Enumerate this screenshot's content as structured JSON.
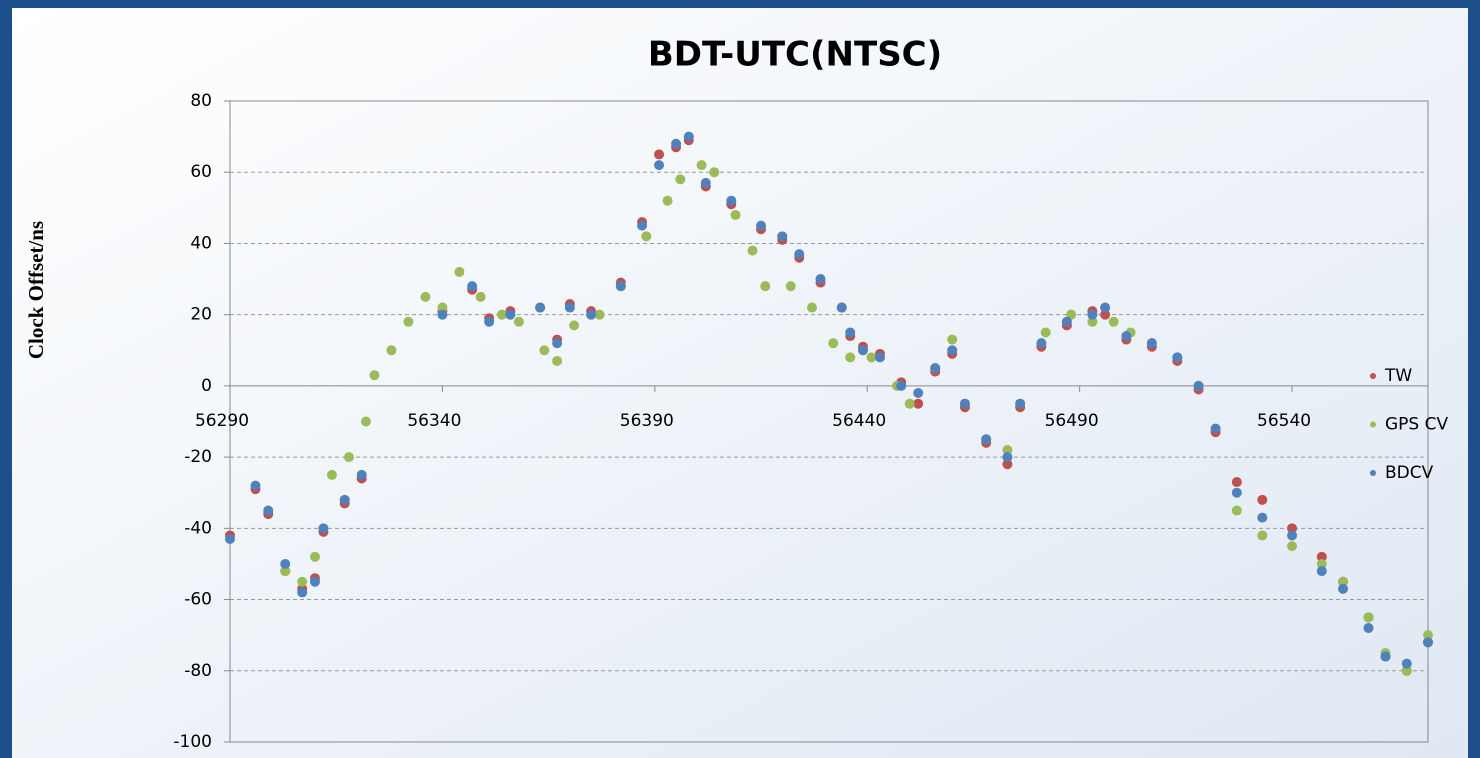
{
  "chart_data": {
    "type": "scatter",
    "title": "BDT-UTC(NTSC)",
    "y_label": "Clock Offset/ns",
    "xlim": [
      56290,
      56572
    ],
    "ylim": [
      -100,
      80
    ],
    "xticks": [
      56290,
      56340,
      56390,
      56440,
      56490,
      56540
    ],
    "yticks": [
      -100,
      -80,
      -60,
      -40,
      -20,
      0,
      20,
      40,
      60,
      80
    ],
    "grid": true,
    "legend": "right",
    "series": [
      {
        "name": "TW",
        "color": "#c0504d",
        "x": [
          56290,
          56296,
          56299,
          56303,
          56307,
          56310,
          56312,
          56317,
          56321,
          56340,
          56347,
          56351,
          56356,
          56363,
          56367,
          56370,
          56375,
          56382,
          56387,
          56391,
          56395,
          56398,
          56402,
          56408,
          56415,
          56420,
          56424,
          56429,
          56434,
          56436,
          56439,
          56443,
          56448,
          56452,
          56456,
          56460,
          56463,
          56468,
          56473,
          56476,
          56481,
          56487,
          56493,
          56496,
          56501,
          56507,
          56513,
          56518,
          56522,
          56527,
          56533,
          56540,
          56547,
          56552,
          56558,
          56562,
          56567,
          56572
        ],
        "values": [
          -42,
          -29,
          -36,
          -52,
          -57,
          -54,
          -41,
          -33,
          -26,
          21,
          27,
          19,
          21,
          22,
          13,
          23,
          21,
          29,
          46,
          65,
          67,
          69,
          56,
          51,
          44,
          41,
          36,
          29,
          22,
          14,
          11,
          9,
          1,
          -5,
          4,
          9,
          -6,
          -16,
          -22,
          -6,
          11,
          17,
          21,
          20,
          13,
          11,
          7,
          -1,
          -13,
          -27,
          -32,
          -40,
          -48,
          -55,
          -65,
          -76,
          -80,
          -72
        ]
      },
      {
        "name": "GPS CV",
        "color": "#9bbb59",
        "x": [
          56303,
          56307,
          56310,
          56314,
          56318,
          56322,
          56324,
          56328,
          56332,
          56336,
          56340,
          56344,
          56349,
          56354,
          56358,
          56364,
          56367,
          56371,
          56377,
          56382,
          56388,
          56393,
          56396,
          56401,
          56404,
          56409,
          56413,
          56416,
          56422,
          56427,
          56432,
          56436,
          56441,
          56447,
          56450,
          56456,
          56460,
          56463,
          56468,
          56473,
          56476,
          56482,
          56488,
          56493,
          56498,
          56502,
          56507,
          56513,
          56518,
          56522,
          56527,
          56533,
          56540,
          56547,
          56552,
          56558,
          56562,
          56567,
          56572
        ],
        "values": [
          -52,
          -55,
          -48,
          -25,
          -20,
          -10,
          3,
          10,
          18,
          25,
          22,
          32,
          25,
          20,
          18,
          10,
          7,
          17,
          20,
          28,
          42,
          52,
          58,
          62,
          60,
          48,
          38,
          28,
          28,
          22,
          12,
          8,
          8,
          0,
          -5,
          5,
          13,
          -5,
          -15,
          -18,
          -5,
          15,
          20,
          18,
          18,
          15,
          12,
          8,
          0,
          -12,
          -35,
          -42,
          -45,
          -50,
          -55,
          -65,
          -75,
          -80,
          -70
        ]
      },
      {
        "name": "BDCV",
        "color": "#4f81bd",
        "x": [
          56290,
          56296,
          56299,
          56303,
          56307,
          56310,
          56312,
          56317,
          56321,
          56340,
          56347,
          56351,
          56356,
          56363,
          56367,
          56370,
          56375,
          56382,
          56387,
          56391,
          56395,
          56398,
          56402,
          56408,
          56415,
          56420,
          56424,
          56429,
          56434,
          56436,
          56439,
          56443,
          56448,
          56452,
          56456,
          56460,
          56463,
          56468,
          56473,
          56476,
          56481,
          56487,
          56493,
          56496,
          56501,
          56507,
          56513,
          56518,
          56522,
          56527,
          56533,
          56540,
          56547,
          56552,
          56558,
          56562,
          56567,
          56572
        ],
        "values": [
          -43,
          -28,
          -35,
          -50,
          -58,
          -55,
          -40,
          -32,
          -25,
          20,
          28,
          18,
          20,
          22,
          12,
          22,
          20,
          28,
          45,
          62,
          68,
          70,
          57,
          52,
          45,
          42,
          37,
          30,
          22,
          15,
          10,
          8,
          0,
          -2,
          5,
          10,
          -5,
          -15,
          -20,
          -5,
          12,
          18,
          20,
          22,
          14,
          12,
          8,
          0,
          -12,
          -30,
          -37,
          -42,
          -52,
          -57,
          -68,
          -76,
          -78,
          -72
        ]
      }
    ]
  }
}
